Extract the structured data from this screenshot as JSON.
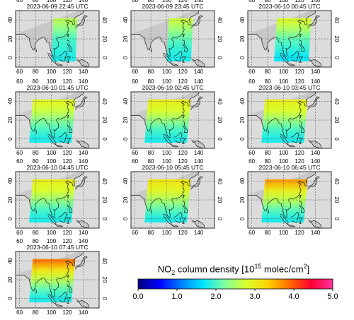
{
  "chart_data": {
    "type": "heatmap",
    "panels": [
      {
        "title": "2023-06-09 22:45 UTC",
        "swath": {
          "lon": [
            100,
            133
          ],
          "lat": [
            -4,
            42
          ]
        },
        "values": {
          "lat_levels": [
            0,
            10,
            20,
            30,
            40
          ],
          "no2": [
            1.8,
            1.9,
            2.0,
            2.3,
            2.6
          ]
        }
      },
      {
        "title": "2023-06-09 23:45 UTC",
        "swath": {
          "lon": [
            100,
            133
          ],
          "lat": [
            -4,
            42
          ]
        },
        "values": {
          "lat_levels": [
            0,
            10,
            20,
            30,
            40
          ],
          "no2": [
            1.8,
            1.9,
            2.1,
            2.4,
            2.7
          ]
        }
      },
      {
        "title": "2023-06-10 00:45 UTC",
        "swath": {
          "lon": [
            88,
            135
          ],
          "lat": [
            -4,
            42
          ]
        },
        "values": {
          "lat_levels": [
            0,
            10,
            20,
            30,
            40
          ],
          "no2": [
            1.7,
            1.9,
            2.1,
            2.5,
            2.8
          ]
        }
      },
      {
        "title": "2023-06-10 01:45 UTC",
        "swath": {
          "lon": [
            72,
            130
          ],
          "lat": [
            -4,
            42
          ]
        },
        "values": {
          "lat_levels": [
            0,
            10,
            20,
            30,
            40
          ],
          "no2": [
            1.8,
            2.0,
            2.3,
            2.7,
            2.9
          ]
        }
      },
      {
        "title": "2023-06-10 02:45 UTC",
        "swath": {
          "lon": [
            72,
            130
          ],
          "lat": [
            -4,
            42
          ]
        },
        "values": {
          "lat_levels": [
            0,
            10,
            20,
            30,
            40
          ],
          "no2": [
            1.8,
            2.0,
            2.4,
            2.8,
            3.0
          ]
        }
      },
      {
        "title": "2023-06-10 03:45 UTC",
        "swath": {
          "lon": [
            72,
            130
          ],
          "lat": [
            -4,
            42
          ]
        },
        "values": {
          "lat_levels": [
            0,
            10,
            20,
            30,
            40
          ],
          "no2": [
            1.8,
            2.0,
            2.4,
            2.8,
            3.0
          ]
        }
      },
      {
        "title": "2023-06-10 04:45 UTC",
        "swath": {
          "lon": [
            72,
            130
          ],
          "lat": [
            -4,
            42
          ]
        },
        "values": {
          "lat_levels": [
            0,
            10,
            20,
            30,
            40
          ],
          "no2": [
            1.8,
            2.0,
            2.4,
            2.8,
            3.0
          ]
        }
      },
      {
        "title": "2023-06-10 05:45 UTC",
        "swath": {
          "lon": [
            72,
            130
          ],
          "lat": [
            -4,
            42
          ]
        },
        "values": {
          "lat_levels": [
            0,
            10,
            20,
            30,
            40
          ],
          "no2": [
            1.8,
            2.1,
            2.5,
            2.9,
            3.1
          ]
        }
      },
      {
        "title": "2023-06-10 06:45 UTC",
        "swath": {
          "lon": [
            72,
            130
          ],
          "lat": [
            -4,
            42
          ]
        },
        "values": {
          "lat_levels": [
            0,
            10,
            20,
            30,
            40
          ],
          "no2": [
            1.8,
            2.1,
            2.6,
            3.0,
            3.6
          ]
        }
      },
      {
        "title": "2023-06-10 07:45 UTC",
        "swath": {
          "lon": [
            72,
            130
          ],
          "lat": [
            -4,
            42
          ]
        },
        "values": {
          "lat_levels": [
            0,
            10,
            20,
            30,
            40
          ],
          "no2": [
            1.8,
            2.1,
            2.6,
            3.1,
            3.8
          ]
        }
      }
    ],
    "map_extent": {
      "lon": [
        55,
        160
      ],
      "lat": [
        -10,
        50
      ]
    },
    "x_ticks": [
      60,
      80,
      100,
      120,
      140
    ],
    "y_ticks": [
      0,
      20,
      40
    ],
    "x_tick_labels": [
      "60",
      "80",
      "100",
      "120",
      "140"
    ],
    "y_tick_labels": [
      "0",
      "20",
      "40"
    ],
    "gridlines": true,
    "colorbar": {
      "label_main": "NO",
      "label_sub": "2",
      "label_rest": " column density [10",
      "label_sup": "15",
      "label_unit": " molec/cm",
      "label_sup2": "2",
      "label_end": "]",
      "min": 0.0,
      "max": 5.0,
      "ticks": [
        0.0,
        1.0,
        2.0,
        3.0,
        4.0,
        5.0
      ],
      "tick_labels": [
        "0.0",
        "1.0",
        "2.0",
        "3.0",
        "4.0",
        "5.0"
      ],
      "colormap": [
        "#00007f",
        "#0000ff",
        "#007fff",
        "#00e5ff",
        "#7fffa0",
        "#d8ff30",
        "#ffd200",
        "#ff6a00",
        "#ff0030",
        "#ff30a0"
      ]
    }
  }
}
